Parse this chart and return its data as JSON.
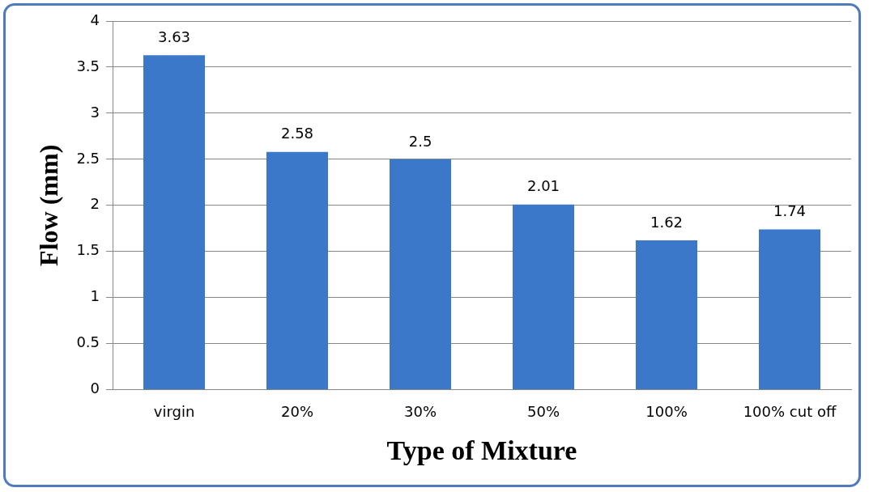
{
  "chart_data": {
    "type": "bar",
    "xlabel": "Type of Mixture",
    "ylabel": "Flow (mm)",
    "categories": [
      "virgin",
      "20%",
      "30%",
      "50%",
      "100%",
      "100% cut off"
    ],
    "values": [
      3.63,
      2.58,
      2.5,
      2.01,
      1.62,
      1.74
    ],
    "color": "#3b78c9",
    "ylim": [
      0,
      4
    ],
    "yticks": [
      0,
      0.5,
      1,
      1.5,
      2,
      2.5,
      3,
      3.5,
      4
    ],
    "grid": "y",
    "data_labels": true
  }
}
